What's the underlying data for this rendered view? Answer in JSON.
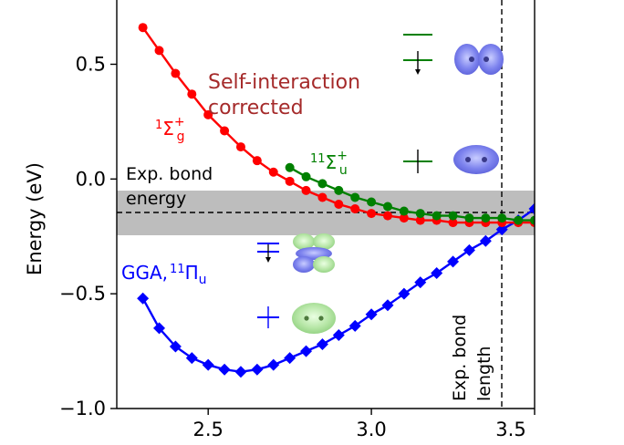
{
  "chart_data": {
    "type": "line",
    "title": "",
    "xlabel": "",
    "ylabel": "Energy (eV)",
    "xlim": [
      2.22,
      3.5
    ],
    "ylim": [
      -1.0,
      0.78
    ],
    "x_ticks": [
      "2.5",
      "3.0",
      "3.5"
    ],
    "y_ticks": [
      "0.5",
      "0.0",
      "−0.5",
      "−1.0"
    ],
    "grid": false,
    "series": [
      {
        "name": "GGA, 11Πu",
        "color": "#0000ff",
        "marker": "diamond",
        "points": [
          [
            2.3,
            -0.52
          ],
          [
            2.35,
            -0.65
          ],
          [
            2.4,
            -0.73
          ],
          [
            2.45,
            -0.78
          ],
          [
            2.5,
            -0.81
          ],
          [
            2.55,
            -0.83
          ],
          [
            2.6,
            -0.84
          ],
          [
            2.65,
            -0.83
          ],
          [
            2.7,
            -0.81
          ],
          [
            2.75,
            -0.78
          ],
          [
            2.8,
            -0.75
          ],
          [
            2.85,
            -0.72
          ],
          [
            2.9,
            -0.68
          ],
          [
            2.95,
            -0.64
          ],
          [
            3.0,
            -0.59
          ],
          [
            3.05,
            -0.55
          ],
          [
            3.1,
            -0.5
          ],
          [
            3.15,
            -0.45
          ],
          [
            3.2,
            -0.41
          ],
          [
            3.25,
            -0.36
          ],
          [
            3.3,
            -0.31
          ],
          [
            3.35,
            -0.27
          ],
          [
            3.4,
            -0.22
          ],
          [
            3.45,
            -0.18
          ],
          [
            3.5,
            -0.13
          ]
        ]
      },
      {
        "name": "1Σg+",
        "color": "#ff0000",
        "marker": "circle",
        "points": [
          [
            2.3,
            0.66
          ],
          [
            2.35,
            0.56
          ],
          [
            2.4,
            0.46
          ],
          [
            2.45,
            0.37
          ],
          [
            2.5,
            0.28
          ],
          [
            2.55,
            0.21
          ],
          [
            2.6,
            0.14
          ],
          [
            2.65,
            0.08
          ],
          [
            2.7,
            0.03
          ],
          [
            2.75,
            -0.01
          ],
          [
            2.8,
            -0.05
          ],
          [
            2.85,
            -0.08
          ],
          [
            2.9,
            -0.11
          ],
          [
            2.95,
            -0.13
          ],
          [
            3.0,
            -0.15
          ],
          [
            3.05,
            -0.16
          ],
          [
            3.1,
            -0.17
          ],
          [
            3.15,
            -0.18
          ],
          [
            3.2,
            -0.18
          ],
          [
            3.25,
            -0.19
          ],
          [
            3.3,
            -0.19
          ],
          [
            3.35,
            -0.19
          ],
          [
            3.4,
            -0.19
          ],
          [
            3.45,
            -0.19
          ],
          [
            3.5,
            -0.19
          ]
        ]
      },
      {
        "name": "11Σu+",
        "color": "#008000",
        "marker": "circle",
        "points": [
          [
            2.75,
            0.05
          ],
          [
            2.8,
            0.01
          ],
          [
            2.85,
            -0.02
          ],
          [
            2.9,
            -0.05
          ],
          [
            2.95,
            -0.08
          ],
          [
            3.0,
            -0.1
          ],
          [
            3.05,
            -0.12
          ],
          [
            3.1,
            -0.14
          ],
          [
            3.15,
            -0.15
          ],
          [
            3.2,
            -0.16
          ],
          [
            3.25,
            -0.16
          ],
          [
            3.3,
            -0.17
          ],
          [
            3.35,
            -0.17
          ],
          [
            3.4,
            -0.17
          ],
          [
            3.45,
            -0.18
          ],
          [
            3.5,
            -0.18
          ]
        ]
      }
    ],
    "exp_bond_energy": {
      "value": -0.13,
      "band": [
        -0.23,
        -0.03
      ],
      "label_line1": "Exp. bond",
      "label_line2": "energy"
    },
    "exp_bond_length": {
      "value": 3.4,
      "label_line1": "Exp. bond",
      "label_line2": "length"
    },
    "annotations": {
      "self_interaction_line1": "Self-interaction",
      "self_interaction_line2": "corrected",
      "self_interaction_color": "#a52a2a",
      "sigma_g_label": "1Σg+",
      "sigma_u_label": "11Σu+",
      "pi_u_label": "GGA, 11Πu"
    }
  }
}
